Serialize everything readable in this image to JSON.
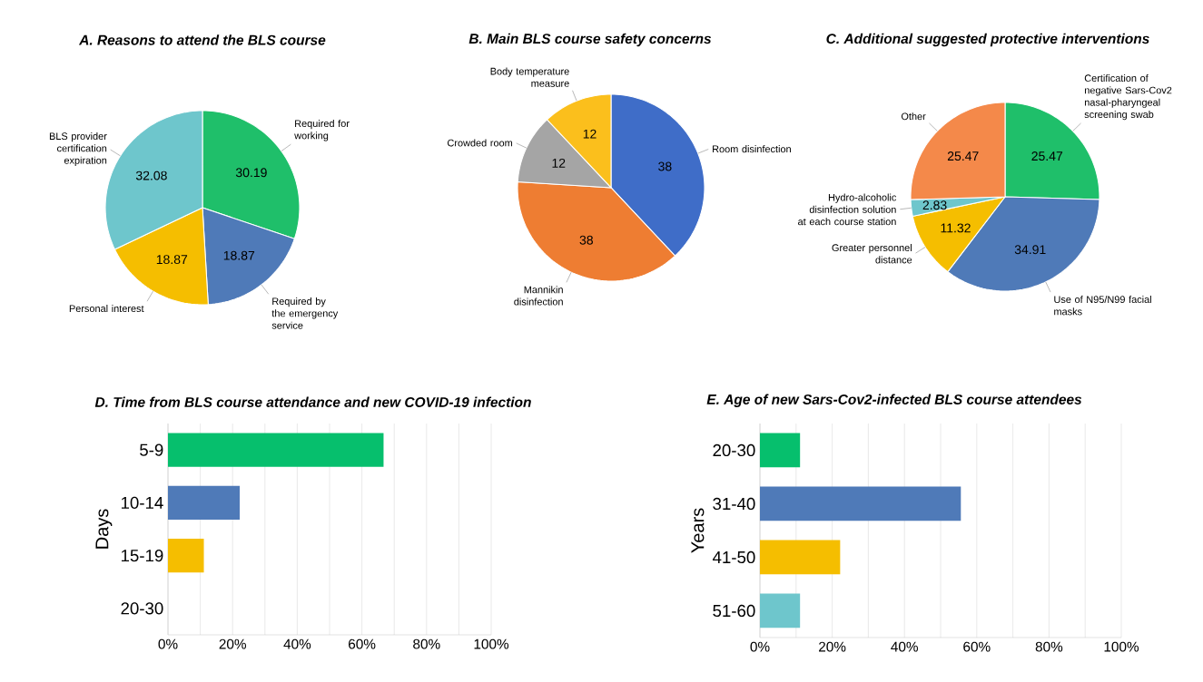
{
  "chart_data": [
    {
      "type": "pie",
      "title": "A. Reasons to attend the BLS course",
      "categories": [
        "Required for working",
        "Required by the emergency service",
        "Personal interest",
        "BLS provider certification expiration"
      ],
      "values": [
        30.19,
        18.87,
        18.87,
        32.08
      ],
      "colors": [
        "#1fbf6a",
        "#4f7ab8",
        "#f5be00",
        "#6ec6cc"
      ],
      "data_labels": true
    },
    {
      "type": "pie",
      "title": "B. Main BLS course safety concerns",
      "categories": [
        "Room disinfection",
        "Mannikin disinfection",
        "Crowded room",
        "Body temperature measure"
      ],
      "values": [
        38,
        38,
        12,
        12
      ],
      "colors": [
        "#3f6dc8",
        "#ee7d32",
        "#a5a5a5",
        "#fbbf1c"
      ],
      "data_labels": true
    },
    {
      "type": "pie",
      "title": "C. Additional suggested protective interventions",
      "categories": [
        "Certification of negative Sars-Cov2 nasal-pharyngeal screening swab",
        "Use of N95/N99 facial masks",
        "Greater personnel distance",
        "Hydro-alcoholic disinfection solution at each course station",
        "Other"
      ],
      "values": [
        25.47,
        34.91,
        11.32,
        2.83,
        25.47
      ],
      "colors": [
        "#1fbf6a",
        "#4f7ab8",
        "#f5be00",
        "#6ec6cc",
        "#f4894a"
      ],
      "data_labels": true
    },
    {
      "type": "bar",
      "orientation": "horizontal",
      "title": "D. Time from BLS course attendance and new COVID-19 infection",
      "ylabel": "Days",
      "categories": [
        "5-9",
        "10-14",
        "15-19",
        "20-30"
      ],
      "values": [
        66.7,
        22.2,
        11.1,
        0
      ],
      "colors": [
        "#06bf6d",
        "#4f7ab8",
        "#f5be00",
        "#6ec6cc"
      ],
      "xlim": [
        0,
        100
      ],
      "xticks": [
        {
          "value": 0,
          "label": "0%"
        },
        {
          "value": 10,
          "label": null
        },
        {
          "value": 20,
          "label": "20%"
        },
        {
          "value": 30,
          "label": null
        },
        {
          "value": 40,
          "label": "40%"
        },
        {
          "value": 50,
          "label": null
        },
        {
          "value": 60,
          "label": "60%"
        },
        {
          "value": 70,
          "label": null
        },
        {
          "value": 80,
          "label": "80%"
        },
        {
          "value": 90,
          "label": null
        },
        {
          "value": 100,
          "label": "100%"
        }
      ],
      "grid": "x"
    },
    {
      "type": "bar",
      "orientation": "horizontal",
      "title": "E. Age of new Sars-Cov2-infected BLS course attendees",
      "ylabel": "Years",
      "categories": [
        "20-30",
        "31-40",
        "41-50",
        "51-60"
      ],
      "values": [
        11.1,
        55.6,
        22.2,
        11.1
      ],
      "colors": [
        "#06bf6d",
        "#4f7ab8",
        "#f5be00",
        "#6ec6cc"
      ],
      "xlim": [
        0,
        100
      ],
      "xticks": [
        {
          "value": 0,
          "label": "0%"
        },
        {
          "value": 10,
          "label": null
        },
        {
          "value": 20,
          "label": "20%"
        },
        {
          "value": 30,
          "label": null
        },
        {
          "value": 40,
          "label": "40%"
        },
        {
          "value": 50,
          "label": null
        },
        {
          "value": 60,
          "label": "60%"
        },
        {
          "value": 70,
          "label": null
        },
        {
          "value": 80,
          "label": "80%"
        },
        {
          "value": 90,
          "label": null
        },
        {
          "value": 100,
          "label": "100%"
        }
      ],
      "grid": "x"
    }
  ]
}
